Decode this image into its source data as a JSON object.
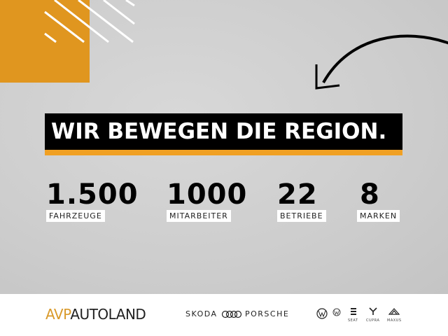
{
  "headline": "WIR BEWEGEN DIE REGION.",
  "stats": [
    {
      "value": "1.500",
      "label": "FAHRZEUGE"
    },
    {
      "value": "1000",
      "label": "MITARBEITER"
    },
    {
      "value": "22",
      "label": "BETRIEBE"
    },
    {
      "value": "8",
      "label": "MARKEN"
    }
  ],
  "footer": {
    "logo_avp": "AVP",
    "logo_autoland": "AUTOLAND",
    "brands": [
      "SKODA",
      "PORSCHE",
      "SEAT",
      "CUPRA",
      "MAXUS"
    ]
  },
  "colors": {
    "accent": "#E0961F",
    "bar": "#F0A023",
    "background": "#cfcfcf"
  },
  "icons": [
    "audi-rings-icon",
    "volkswagen-icon",
    "vw-commercial-icon",
    "seat-icon",
    "cupra-icon",
    "maxus-icon",
    "curved-arrow-icon"
  ]
}
